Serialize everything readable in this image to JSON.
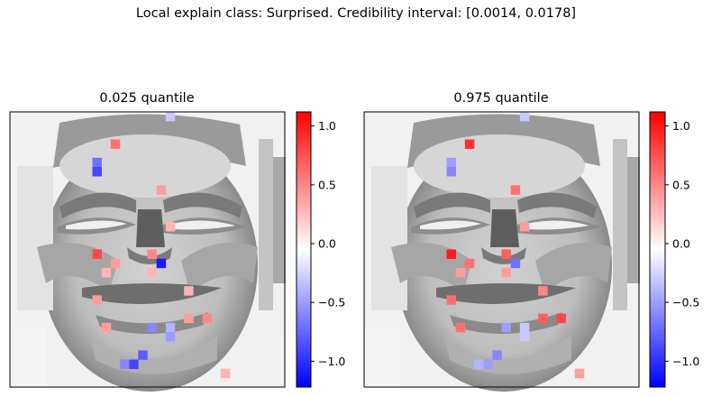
{
  "figure": {
    "suptitle": "Local explain class: Surprised. Credibility interval: [0.0014, 0.0178]"
  },
  "chart_data": [
    {
      "type": "heatmap",
      "title": "0.025 quantile",
      "colormap": "bwr",
      "background": "grayscale face image",
      "clim": [
        -1.22,
        1.12
      ],
      "colorbar_ticks": [
        -1.0,
        -0.5,
        0.0,
        0.5,
        1.0
      ],
      "colorbar_tick_labels": [
        "−1.0",
        "−0.5",
        "0.0",
        "0.5",
        "1.0"
      ],
      "grid_cols": 30,
      "grid_rows": 30,
      "pixels": [
        {
          "col": 17,
          "row": 0,
          "value": -0.3
        },
        {
          "col": 11,
          "row": 3,
          "value": 0.6
        },
        {
          "col": 9,
          "row": 5,
          "value": -0.7
        },
        {
          "col": 9,
          "row": 6,
          "value": -0.9
        },
        {
          "col": 16,
          "row": 8,
          "value": 0.4
        },
        {
          "col": 17,
          "row": 12,
          "value": 0.3
        },
        {
          "col": 9,
          "row": 15,
          "value": 0.8
        },
        {
          "col": 15,
          "row": 15,
          "value": 0.5
        },
        {
          "col": 10,
          "row": 17,
          "value": 0.3
        },
        {
          "col": 11,
          "row": 16,
          "value": 0.4
        },
        {
          "col": 16,
          "row": 16,
          "value": -1.1
        },
        {
          "col": 15,
          "row": 17,
          "value": 0.3
        },
        {
          "col": 19,
          "row": 19,
          "value": 0.3
        },
        {
          "col": 9,
          "row": 20,
          "value": 0.4
        },
        {
          "col": 19,
          "row": 22,
          "value": 0.4
        },
        {
          "col": 10,
          "row": 23,
          "value": 0.4
        },
        {
          "col": 15,
          "row": 23,
          "value": -0.6
        },
        {
          "col": 17,
          "row": 23,
          "value": -0.4
        },
        {
          "col": 21,
          "row": 22,
          "value": 0.5
        },
        {
          "col": 17,
          "row": 24,
          "value": -0.5
        },
        {
          "col": 14,
          "row": 26,
          "value": -0.8
        },
        {
          "col": 13,
          "row": 27,
          "value": -0.9
        },
        {
          "col": 12,
          "row": 27,
          "value": -0.6
        },
        {
          "col": 23,
          "row": 28,
          "value": 0.3
        }
      ]
    },
    {
      "type": "heatmap",
      "title": "0.975 quantile",
      "colormap": "bwr",
      "background": "grayscale face image",
      "clim": [
        -1.22,
        1.12
      ],
      "colorbar_ticks": [
        -1.0,
        -0.5,
        0.0,
        0.5,
        1.0
      ],
      "colorbar_tick_labels": [
        "−1.0",
        "−0.5",
        "0.0",
        "0.5",
        "1.0"
      ],
      "grid_cols": 30,
      "grid_rows": 30,
      "pixels": [
        {
          "col": 17,
          "row": 0,
          "value": -0.3
        },
        {
          "col": 11,
          "row": 3,
          "value": 0.9
        },
        {
          "col": 9,
          "row": 5,
          "value": -0.5
        },
        {
          "col": 9,
          "row": 6,
          "value": -0.6
        },
        {
          "col": 16,
          "row": 8,
          "value": 0.6
        },
        {
          "col": 17,
          "row": 12,
          "value": 0.4
        },
        {
          "col": 9,
          "row": 15,
          "value": 1.0
        },
        {
          "col": 15,
          "row": 15,
          "value": 0.7
        },
        {
          "col": 10,
          "row": 17,
          "value": 0.4
        },
        {
          "col": 11,
          "row": 16,
          "value": 0.6
        },
        {
          "col": 16,
          "row": 16,
          "value": -0.7
        },
        {
          "col": 15,
          "row": 17,
          "value": 0.4
        },
        {
          "col": 19,
          "row": 19,
          "value": 0.5
        },
        {
          "col": 9,
          "row": 20,
          "value": 0.6
        },
        {
          "col": 19,
          "row": 22,
          "value": 0.7
        },
        {
          "col": 10,
          "row": 23,
          "value": 0.6
        },
        {
          "col": 15,
          "row": 23,
          "value": -0.5
        },
        {
          "col": 17,
          "row": 23,
          "value": -0.3
        },
        {
          "col": 21,
          "row": 22,
          "value": 0.8
        },
        {
          "col": 17,
          "row": 24,
          "value": -0.3
        },
        {
          "col": 14,
          "row": 26,
          "value": -0.6
        },
        {
          "col": 13,
          "row": 27,
          "value": -0.5
        },
        {
          "col": 12,
          "row": 27,
          "value": -0.4
        },
        {
          "col": 23,
          "row": 28,
          "value": 0.4
        }
      ]
    }
  ]
}
